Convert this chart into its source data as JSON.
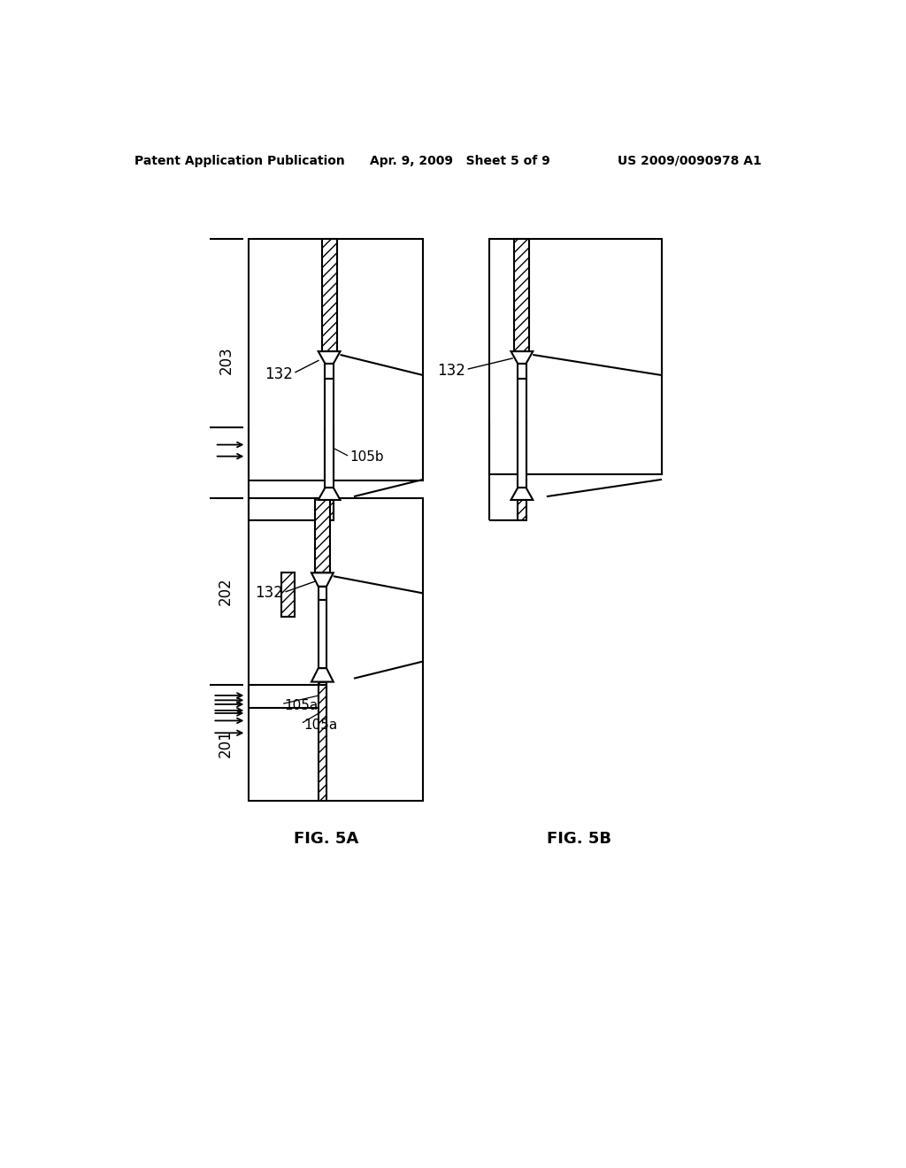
{
  "bg_color": "#ffffff",
  "text_color": "#000000",
  "header_left": "Patent Application Publication",
  "header_center": "Apr. 9, 2009   Sheet 5 of 9",
  "header_right": "US 2009/0090978 A1",
  "fig5a_label": "FIG. 5A",
  "fig5b_label": "FIG. 5B",
  "line_width": 1.5
}
